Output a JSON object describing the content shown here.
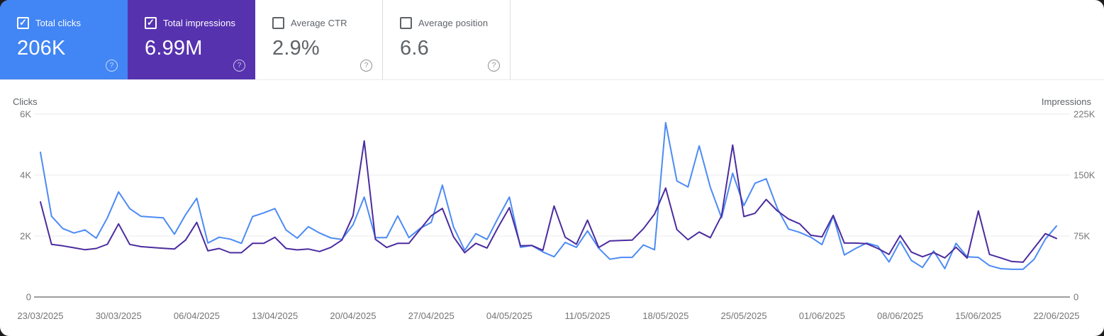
{
  "icons": {
    "check": "✓",
    "help": "?"
  },
  "cards": [
    {
      "label": "Total clicks",
      "value": "206K",
      "checked": true,
      "bg": "#4285f4",
      "text": "#ffffff"
    },
    {
      "label": "Total impressions",
      "value": "6.99M",
      "checked": true,
      "bg": "#5632af",
      "text": "#ffffff"
    },
    {
      "label": "Average CTR",
      "value": "2.9%",
      "checked": false,
      "bg": "#ffffff",
      "text": "#5f6368"
    },
    {
      "label": "Average position",
      "value": "6.6",
      "checked": false,
      "bg": "#ffffff",
      "text": "#5f6368"
    }
  ],
  "chart_data": {
    "type": "line",
    "grid": "horizontal",
    "x_tick_labels": [
      "23/03/2025",
      "30/03/2025",
      "06/04/2025",
      "13/04/2025",
      "20/04/2025",
      "27/04/2025",
      "04/05/2025",
      "11/05/2025",
      "18/05/2025",
      "25/05/2025",
      "01/06/2025",
      "08/06/2025",
      "15/06/2025",
      "22/06/2025"
    ],
    "points_per_label": 7,
    "left_axis": {
      "title": "Clicks",
      "ticks": [
        "0",
        "2K",
        "4K",
        "6K"
      ],
      "range": [
        0,
        6000
      ]
    },
    "right_axis": {
      "title": "Impressions",
      "ticks": [
        "0",
        "75K",
        "150K",
        "225K"
      ],
      "range": [
        0,
        225000
      ]
    },
    "series": [
      {
        "name": "Clicks",
        "axis": "left",
        "color": "#4c8bf5",
        "values": [
          4750,
          2650,
          2250,
          2100,
          2200,
          1930,
          2600,
          3450,
          2900,
          2650,
          2620,
          2600,
          2060,
          2700,
          3240,
          1770,
          1960,
          1900,
          1760,
          2640,
          2760,
          2900,
          2200,
          1930,
          2310,
          2100,
          1940,
          1890,
          2370,
          3280,
          1950,
          1950,
          2660,
          1950,
          2250,
          2450,
          3670,
          2300,
          1530,
          2080,
          1890,
          2600,
          3280,
          1630,
          1690,
          1480,
          1320,
          1790,
          1630,
          2170,
          1600,
          1240,
          1300,
          1300,
          1710,
          1550,
          5720,
          3810,
          3610,
          4960,
          3600,
          2600,
          4060,
          3000,
          3730,
          3880,
          2910,
          2230,
          2120,
          1960,
          1720,
          2660,
          1380,
          1590,
          1770,
          1670,
          1150,
          1830,
          1200,
          970,
          1510,
          930,
          1760,
          1320,
          1300,
          1030,
          930,
          910,
          910,
          1240,
          1900,
          2330
        ]
      },
      {
        "name": "Impressions",
        "axis": "right",
        "color": "#4b2c9f",
        "values": [
          117000,
          64700,
          63000,
          60600,
          58200,
          59700,
          65000,
          90000,
          64700,
          62000,
          61000,
          60000,
          59000,
          70000,
          91800,
          56800,
          59700,
          54500,
          54500,
          66000,
          66000,
          73400,
          59700,
          58000,
          59000,
          56000,
          61000,
          70000,
          100000,
          192000,
          71000,
          61000,
          66000,
          66000,
          83000,
          100000,
          109000,
          74000,
          54500,
          66000,
          60300,
          86000,
          110000,
          63000,
          63500,
          57500,
          112000,
          73500,
          65000,
          94500,
          61000,
          69000,
          69500,
          70000,
          84000,
          102000,
          134000,
          83000,
          70500,
          80000,
          73000,
          100000,
          187000,
          99000,
          103000,
          120000,
          106000,
          96000,
          90000,
          76000,
          74000,
          100500,
          66400,
          66400,
          65600,
          59700,
          52400,
          75700,
          55300,
          49500,
          54700,
          48100,
          61200,
          48000,
          106000,
          52400,
          48100,
          43700,
          42800,
          60300,
          78000,
          72000
        ]
      }
    ],
    "colors": {
      "gridline": "#ebebeb",
      "baseline": "#9e9e9e",
      "tick_text": "#757575",
      "axis_title": "#5f6368"
    }
  }
}
